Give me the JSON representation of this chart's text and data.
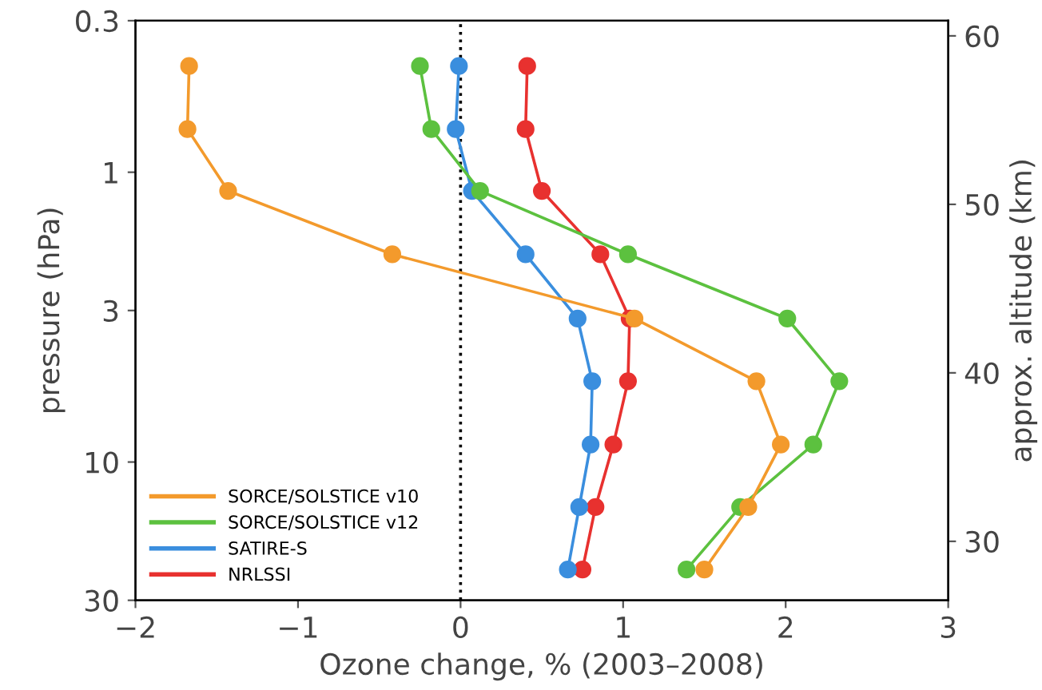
{
  "chart_data": {
    "type": "line",
    "xlabel": "Ozone change, % (2003–2008)",
    "ylabel": "pressure (hPa)",
    "y2label": "approx. altitude (km)",
    "xlim": [
      -2,
      3
    ],
    "xticks": [
      {
        "value": -2,
        "label": "−2"
      },
      {
        "value": -1,
        "label": "−1"
      },
      0,
      1,
      2,
      3
    ],
    "log": "y",
    "ylim": [
      30,
      0.3
    ],
    "yticks": [
      0.3,
      1,
      3,
      10,
      30
    ],
    "y2lim": [
      26.5,
      60.9
    ],
    "y2ticks": [
      30,
      40,
      50,
      60
    ],
    "marker": "circle",
    "line_style": "solid",
    "grid": false,
    "legend": "bottom left",
    "ref_lines": [
      {
        "axis": "x",
        "value": 0,
        "color": "#000000",
        "line_style": "dotted"
      }
    ],
    "series": [
      {
        "name": "SORCE/SOLSTICE v10",
        "color": "#f39a2c",
        "x": [
          -1.67,
          -1.68,
          -1.43,
          -0.42,
          1.07,
          1.82,
          1.97,
          1.77,
          1.5
        ],
        "values": [
          0.43,
          0.71,
          1.16,
          1.92,
          3.2,
          5.26,
          8.7,
          14.3,
          23.5
        ]
      },
      {
        "name": "SORCE/SOLSTICE v12",
        "color": "#5cc13f",
        "x": [
          -0.25,
          -0.18,
          0.12,
          1.03,
          2.01,
          2.33,
          2.17,
          1.72,
          1.39
        ],
        "values": [
          0.43,
          0.71,
          1.16,
          1.92,
          3.2,
          5.26,
          8.7,
          14.3,
          23.5
        ]
      },
      {
        "name": "SATIRE-S",
        "color": "#3a8ede",
        "x": [
          -0.01,
          -0.03,
          0.07,
          0.4,
          0.72,
          0.81,
          0.8,
          0.73,
          0.66
        ],
        "values": [
          0.43,
          0.71,
          1.16,
          1.92,
          3.2,
          5.26,
          8.7,
          14.3,
          23.5
        ]
      },
      {
        "name": "NRLSSI",
        "color": "#e8312f",
        "x": [
          0.41,
          0.4,
          0.5,
          0.86,
          1.04,
          1.03,
          0.94,
          0.83,
          0.75
        ],
        "values": [
          0.43,
          0.71,
          1.16,
          1.92,
          3.2,
          5.26,
          8.7,
          14.3,
          23.5
        ]
      }
    ]
  }
}
